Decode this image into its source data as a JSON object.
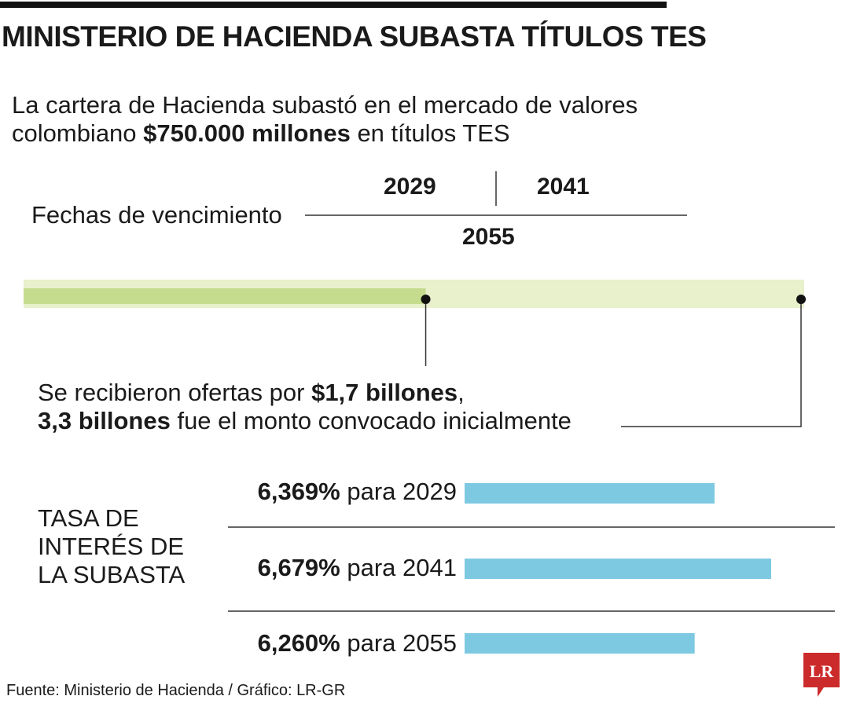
{
  "header": {
    "title": "MINISTERIO DE HACIENDA SUBASTA TÍTULOS TES"
  },
  "intro": {
    "line1": "La cartera de Hacienda subastó en el mercado de valores",
    "line2_pre": "colombiano ",
    "line2_bold": "$750.000 millones",
    "line2_post": " en títulos TES"
  },
  "maturity": {
    "label": "Fechas de vencimiento",
    "years_top": [
      "2029",
      "2041"
    ],
    "year_bottom": "2055"
  },
  "offers": {
    "line1_pre": "Se recibieron ofertas por ",
    "line1_bold": "$1,7 billones",
    "line1_post": ",",
    "line2_bold": "3,3 billones",
    "line2_post": " fue el monto convocado inicialmente"
  },
  "rates": {
    "title": "TASA DE INTERÉS DE LA SUBASTA",
    "title_lines": [
      "TASA DE",
      "INTERÉS DE",
      "LA SUBASTA"
    ],
    "connector": "para"
  },
  "colors": {
    "offer_bar": "#c5dc8e",
    "convened_bar": "#e8f0cc",
    "rate_bar": "#7ec9e2",
    "logo_red": "#cc2b2b"
  },
  "chart_data": [
    {
      "type": "bar",
      "orientation": "horizontal",
      "categories": [
        "Ofertas recibidas",
        "Monto convocado inicialmente"
      ],
      "values": [
        1.7,
        3.3
      ],
      "unit": "billones"
    },
    {
      "type": "bar",
      "orientation": "horizontal",
      "categories": [
        "2029",
        "2041",
        "2055"
      ],
      "values": [
        6.369,
        6.679,
        6.26
      ],
      "value_labels": [
        "6,369%",
        "6,679%",
        "6,260%"
      ],
      "unit": "%"
    }
  ],
  "footer": {
    "source": "Fuente: Ministerio de Hacienda / Gráfico: LR-GR",
    "logo_text": "LR"
  }
}
